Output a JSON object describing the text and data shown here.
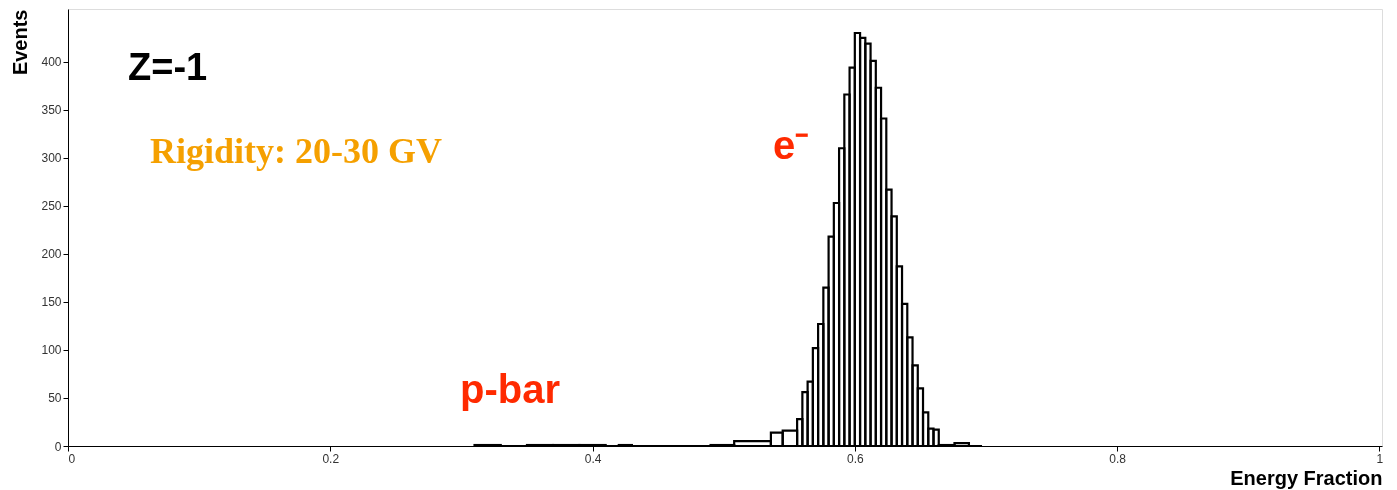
{
  "chart_data": {
    "type": "histogram",
    "xlabel": "Energy Fraction",
    "ylabel": "Events",
    "bins": [
      0.31,
      0.33,
      0.35,
      0.37,
      0.39,
      0.41,
      0.42,
      0.43,
      0.49,
      0.508,
      0.536,
      0.545,
      0.556,
      0.56,
      0.564,
      0.568,
      0.572,
      0.576,
      0.58,
      0.584,
      0.588,
      0.592,
      0.596,
      0.6,
      0.604,
      0.608,
      0.612,
      0.616,
      0.62,
      0.624,
      0.628,
      0.632,
      0.636,
      0.64,
      0.644,
      0.648,
      0.652,
      0.656,
      0.66,
      0.664,
      0.676,
      0.687,
      0.697
    ],
    "values": [
      1,
      0,
      1,
      1,
      1,
      0,
      1,
      0,
      1,
      5,
      14,
      16,
      28,
      56,
      67,
      102,
      127,
      165,
      218,
      253,
      310,
      366,
      394,
      430,
      425,
      419,
      401,
      373,
      341,
      267,
      239,
      187,
      148,
      113,
      84,
      60,
      35,
      18,
      17,
      1,
      3,
      0
    ],
    "color": "#000000",
    "xlim": [
      0,
      1.002
    ],
    "xticks": [
      0,
      0.2,
      0.4,
      0.6,
      0.8,
      1
    ],
    "ylim": [
      0,
      455
    ],
    "yticks": [
      0,
      50,
      100,
      150,
      200,
      250,
      300,
      350,
      400
    ],
    "annotations": [
      "Z=-1",
      "Rigidity: 20-30 GV",
      "e⁻",
      "p-bar"
    ]
  }
}
